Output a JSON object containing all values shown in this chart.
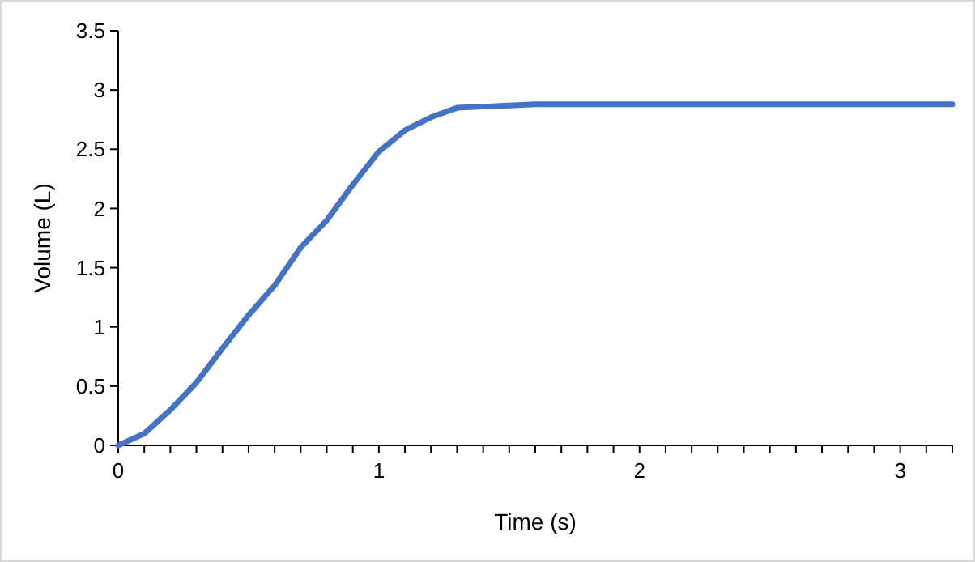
{
  "chart_data": {
    "type": "line",
    "xlabel": "Time (s)",
    "ylabel": "Volume (L)",
    "series": [
      {
        "color": "#4472c4",
        "x": [
          0,
          0.1,
          0.2,
          0.3,
          0.4,
          0.5,
          0.6,
          0.7,
          0.8,
          0.9,
          1.0,
          1.1,
          1.2,
          1.3,
          1.4,
          1.5,
          1.6,
          1.7,
          2.0,
          2.5,
          3.0,
          3.2
        ],
        "values": [
          0,
          0.1,
          0.3,
          0.53,
          0.82,
          1.1,
          1.35,
          1.67,
          1.9,
          2.2,
          2.48,
          2.66,
          2.77,
          2.85,
          2.86,
          2.87,
          2.88,
          2.88,
          2.88,
          2.88,
          2.88,
          2.88
        ]
      }
    ],
    "xlim": [
      0,
      3.2
    ],
    "xticks": [
      0,
      {
        "value": 0.1,
        "label": null
      },
      {
        "value": 0.2,
        "label": null
      },
      {
        "value": 0.3,
        "label": null
      },
      {
        "value": 0.4,
        "label": null
      },
      {
        "value": 0.5,
        "label": null
      },
      {
        "value": 0.6,
        "label": null
      },
      {
        "value": 0.7,
        "label": null
      },
      {
        "value": 0.8,
        "label": null
      },
      {
        "value": 0.9,
        "label": null
      },
      1,
      {
        "value": 1.1,
        "label": null
      },
      {
        "value": 1.2,
        "label": null
      },
      {
        "value": 1.3,
        "label": null
      },
      {
        "value": 1.4,
        "label": null
      },
      {
        "value": 1.5,
        "label": null
      },
      {
        "value": 1.6,
        "label": null
      },
      {
        "value": 1.7,
        "label": null
      },
      {
        "value": 1.8,
        "label": null
      },
      {
        "value": 1.9,
        "label": null
      },
      2,
      {
        "value": 2.1,
        "label": null
      },
      {
        "value": 2.2,
        "label": null
      },
      {
        "value": 2.3,
        "label": null
      },
      {
        "value": 2.4,
        "label": null
      },
      {
        "value": 2.5,
        "label": null
      },
      {
        "value": 2.6,
        "label": null
      },
      {
        "value": 2.7,
        "label": null
      },
      {
        "value": 2.8,
        "label": null
      },
      {
        "value": 2.9,
        "label": null
      },
      3,
      {
        "value": 3.1,
        "label": null
      },
      {
        "value": 3.2,
        "label": null
      }
    ],
    "ylim": [
      0,
      3.5
    ],
    "yticks": [
      0,
      0.5,
      1,
      1.5,
      2,
      2.5,
      3,
      3.5
    ],
    "grid": false,
    "marker": "none",
    "line_style": "solid"
  }
}
